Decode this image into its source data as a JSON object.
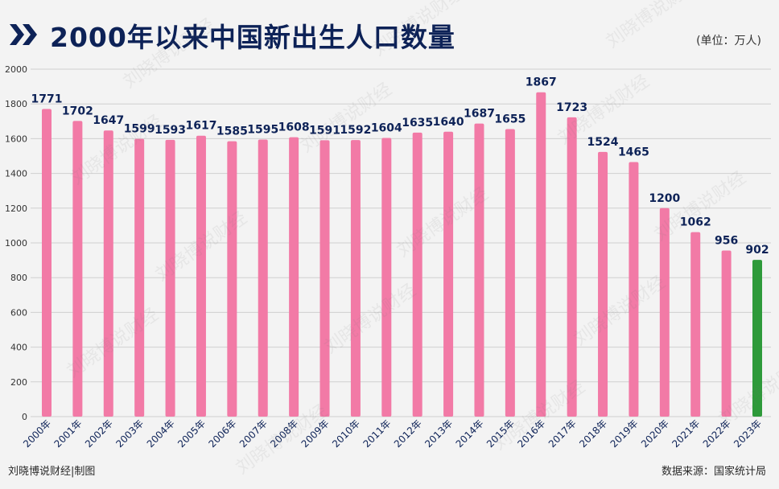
{
  "header": {
    "title": "2000年以来中国新出生人口数量",
    "unit": "(单位：万人)"
  },
  "footer": {
    "credit": "刘晓博说财经|制图",
    "source": "数据来源：国家统计局"
  },
  "watermark": {
    "text": "刘晓博说财经"
  },
  "colors": {
    "title": "#0d2257",
    "bar": "#f27aa6",
    "bar_highlight": "#2e9a3a",
    "label": "#0d2257",
    "grid": "#cfcfcf"
  },
  "chart_data": {
    "type": "bar",
    "categories": [
      "2000年",
      "2001年",
      "2002年",
      "2003年",
      "2004年",
      "2005年",
      "2006年",
      "2007年",
      "2008年",
      "2009年",
      "2010年",
      "2011年",
      "2012年",
      "2013年",
      "2014年",
      "2015年",
      "2016年",
      "2017年",
      "2018年",
      "2019年",
      "2020年",
      "2021年",
      "2022年",
      "2023年"
    ],
    "values": [
      1771,
      1702,
      1647,
      1599,
      1593,
      1617,
      1585,
      1595,
      1608,
      1591,
      1592,
      1604,
      1635,
      1640,
      1687,
      1655,
      1867,
      1723,
      1524,
      1465,
      1200,
      1062,
      956,
      902
    ],
    "highlight_index": 23,
    "ylim": [
      0,
      2000
    ],
    "yticks": [
      0,
      200,
      400,
      600,
      800,
      1000,
      1200,
      1400,
      1600,
      1800,
      2000
    ],
    "grid": true,
    "title": "2000年以来中国新出生人口数量",
    "xlabel": "",
    "ylabel": ""
  }
}
